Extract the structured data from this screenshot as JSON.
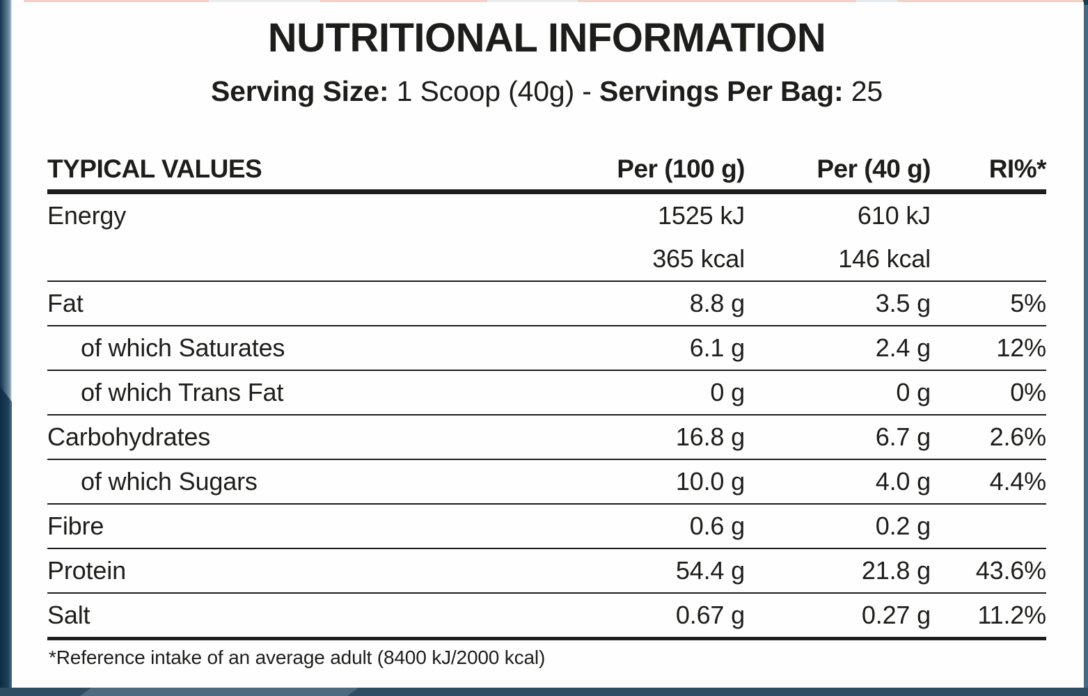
{
  "header": {
    "title": "NUTRITIONAL INFORMATION",
    "serving_size_label": "Serving Size:",
    "serving_size_value": "1 Scoop (40g) -",
    "servings_per_bag_label": "Servings Per Bag:",
    "servings_per_bag_value": "25"
  },
  "table": {
    "columns": [
      "TYPICAL VALUES",
      "Per (100 g)",
      "Per (40 g)",
      "RI%*"
    ],
    "rows": [
      {
        "label": "Energy",
        "indent": false,
        "per100": "1525 kJ",
        "per100_line2": "365 kcal",
        "per40": "610 kJ",
        "per40_line2": "146 kcal",
        "ri": ""
      },
      {
        "label": "Fat",
        "indent": false,
        "per100": "8.8 g",
        "per40": "3.5 g",
        "ri": "5%"
      },
      {
        "label": "of which Saturates",
        "indent": true,
        "per100": "6.1 g",
        "per40": "2.4 g",
        "ri": "12%"
      },
      {
        "label": "of which Trans Fat",
        "indent": true,
        "per100": "0 g",
        "per40": "0 g",
        "ri": "0%"
      },
      {
        "label": "Carbohydrates",
        "indent": false,
        "per100": "16.8 g",
        "per40": "6.7 g",
        "ri": "2.6%"
      },
      {
        "label": "of which Sugars",
        "indent": true,
        "per100": "10.0 g",
        "per40": "4.0 g",
        "ri": "4.4%"
      },
      {
        "label": "Fibre",
        "indent": false,
        "per100": "0.6 g",
        "per40": "0.2 g",
        "ri": ""
      },
      {
        "label": "Protein",
        "indent": false,
        "per100": "54.4 g",
        "per40": "21.8 g",
        "ri": "43.6%"
      },
      {
        "label": "Salt",
        "indent": false,
        "per100": "0.67 g",
        "per40": "0.27 g",
        "ri": "11.2%"
      }
    ]
  },
  "footnote": "*Reference intake of an average adult (8400 kJ/2000 kcal)",
  "colors": {
    "text": "#1d1d1b",
    "frame_navy": "#16344c",
    "frame_slate": "#2e4d63",
    "frame_steel": "#64839a",
    "accent_salmon": "#f5cfc5"
  }
}
